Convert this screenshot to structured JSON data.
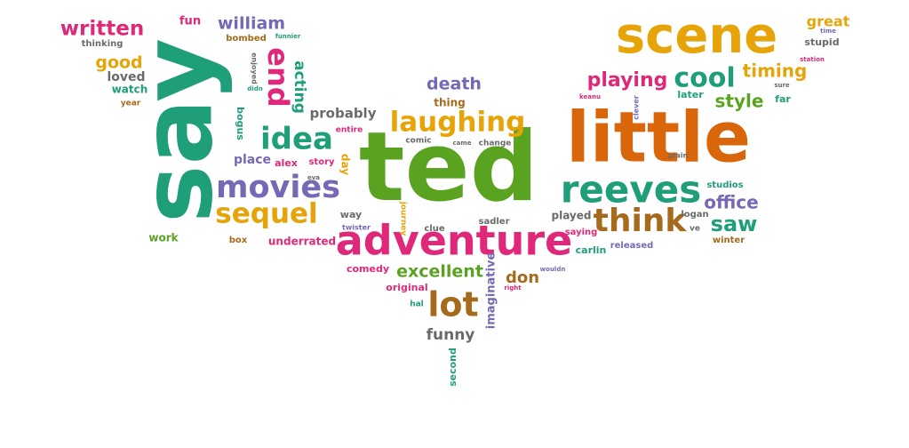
{
  "palette": {
    "green": "#1f9e7a",
    "lime": "#5aa320",
    "orange": "#d9660b",
    "gold": "#e6a408",
    "purple": "#7668b5",
    "pink": "#e0287a",
    "brown": "#a56a1b",
    "gray": "#6a6a6a"
  },
  "words": [
    {
      "text": "ted",
      "color": "lime"
    },
    {
      "text": "say",
      "color": "green"
    },
    {
      "text": "little",
      "color": "orange"
    },
    {
      "text": "scene",
      "color": "gold"
    },
    {
      "text": "adventure",
      "color": "pink"
    },
    {
      "text": "reeves",
      "color": "green"
    },
    {
      "text": "laughing",
      "color": "gold"
    },
    {
      "text": "think",
      "color": "brown"
    },
    {
      "text": "movies",
      "color": "purple"
    },
    {
      "text": "idea",
      "color": "green"
    },
    {
      "text": "sequel",
      "color": "gold"
    },
    {
      "text": "lot",
      "color": "brown"
    },
    {
      "text": "cool",
      "color": "green"
    },
    {
      "text": "end",
      "color": "pink"
    },
    {
      "text": "playing",
      "color": "pink"
    },
    {
      "text": "written",
      "color": "pink"
    },
    {
      "text": "saw",
      "color": "green"
    },
    {
      "text": "office",
      "color": "purple"
    },
    {
      "text": "timing",
      "color": "gold"
    },
    {
      "text": "excellent",
      "color": "lime"
    },
    {
      "text": "style",
      "color": "lime"
    },
    {
      "text": "death",
      "color": "purple"
    },
    {
      "text": "william",
      "color": "purple"
    },
    {
      "text": "good",
      "color": "gold"
    },
    {
      "text": "acting",
      "color": "green"
    },
    {
      "text": "funny",
      "color": "gray"
    },
    {
      "text": "probably",
      "color": "gray"
    },
    {
      "text": "don",
      "color": "brown"
    },
    {
      "text": "great",
      "color": "gold"
    },
    {
      "text": "loved",
      "color": "gray"
    },
    {
      "text": "place",
      "color": "purple"
    },
    {
      "text": "day",
      "color": "gold"
    },
    {
      "text": "imaginative",
      "color": "purple"
    },
    {
      "text": "fun",
      "color": "pink"
    },
    {
      "text": "thing",
      "color": "brown"
    },
    {
      "text": "comedy",
      "color": "pink"
    },
    {
      "text": "original",
      "color": "pink"
    },
    {
      "text": "second",
      "color": "green"
    },
    {
      "text": "watch",
      "color": "green"
    },
    {
      "text": "underrated",
      "color": "pink"
    },
    {
      "text": "work",
      "color": "lime"
    },
    {
      "text": "stupid",
      "color": "gray"
    },
    {
      "text": "thinking",
      "color": "gray"
    },
    {
      "text": "bombed",
      "color": "brown"
    },
    {
      "text": "funnier",
      "color": "green"
    },
    {
      "text": "year",
      "color": "brown"
    },
    {
      "text": "bogus",
      "color": "green"
    },
    {
      "text": "enjoyed",
      "color": "gray"
    },
    {
      "text": "didn",
      "color": "green"
    },
    {
      "text": "alex",
      "color": "pink"
    },
    {
      "text": "story",
      "color": "pink"
    },
    {
      "text": "entire",
      "color": "pink"
    },
    {
      "text": "eva",
      "color": "gray"
    },
    {
      "text": "comic",
      "color": "gray"
    },
    {
      "text": "came",
      "color": "gray"
    },
    {
      "text": "change",
      "color": "gray"
    },
    {
      "text": "way",
      "color": "gray"
    },
    {
      "text": "twister",
      "color": "purple"
    },
    {
      "text": "box",
      "color": "brown"
    },
    {
      "text": "journey",
      "color": "gold"
    },
    {
      "text": "clue",
      "color": "gray"
    },
    {
      "text": "sadler",
      "color": "gray"
    },
    {
      "text": "played",
      "color": "gray"
    },
    {
      "text": "saying",
      "color": "pink"
    },
    {
      "text": "carlin",
      "color": "green"
    },
    {
      "text": "released",
      "color": "purple"
    },
    {
      "text": "wouldn",
      "color": "purple"
    },
    {
      "text": "right",
      "color": "pink"
    },
    {
      "text": "hal",
      "color": "green"
    },
    {
      "text": "logan",
      "color": "gray"
    },
    {
      "text": "ve",
      "color": "gray"
    },
    {
      "text": "winter",
      "color": "brown"
    },
    {
      "text": "studios",
      "color": "green"
    },
    {
      "text": "plain",
      "color": "gray"
    },
    {
      "text": "later",
      "color": "green"
    },
    {
      "text": "clever",
      "color": "purple"
    },
    {
      "text": "keanu",
      "color": "pink"
    },
    {
      "text": "far",
      "color": "green"
    },
    {
      "text": "sure",
      "color": "gray"
    },
    {
      "text": "station",
      "color": "pink"
    },
    {
      "text": "time",
      "color": "purple"
    }
  ]
}
